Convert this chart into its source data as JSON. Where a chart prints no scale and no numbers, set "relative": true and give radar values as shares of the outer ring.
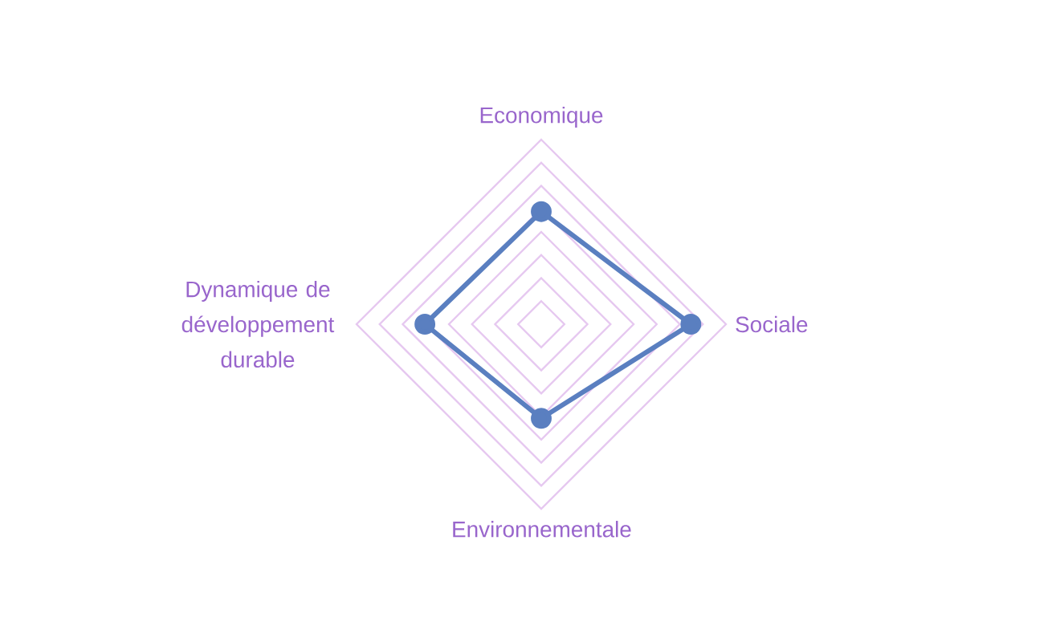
{
  "chart_data": {
    "type": "radar",
    "relative": true,
    "grid": true,
    "marker": "circle",
    "line_style": "solid",
    "categories": [
      "Economique",
      "Sociale",
      "Environnementale",
      "Dynamique de développement durable"
    ],
    "series": [
      {
        "color": "#5a7fc0",
        "values": [
          0.61,
          0.81,
          0.51,
          0.63
        ]
      }
    ]
  }
}
